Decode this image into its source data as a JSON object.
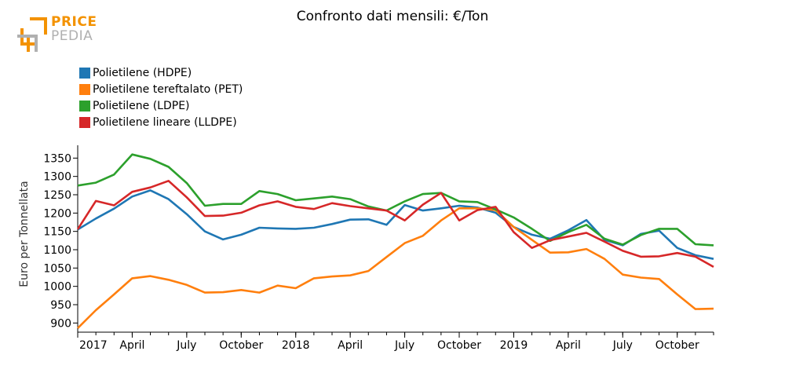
{
  "header": {
    "title": "Confronto dati mensili: €/Ton",
    "logo_word_1": "PRICE",
    "logo_word_2": "PEDIA",
    "logo_colors": {
      "accent": "#f39200",
      "gray": "#b0b0b0"
    }
  },
  "chart_data": {
    "type": "line",
    "title": "Confronto dati mensili: €/Ton",
    "ylabel": "Euro per Tonnellata",
    "xlabel": "",
    "x_range": [
      "2017-01",
      "2019-12"
    ],
    "ylim": [
      875,
      1385
    ],
    "yticks": [
      900,
      950,
      1000,
      1050,
      1100,
      1150,
      1200,
      1250,
      1300,
      1350
    ],
    "xticks": [
      {
        "x": "2017-01",
        "label": "2017"
      },
      {
        "x": "2017-04",
        "label": "April"
      },
      {
        "x": "2017-07",
        "label": "July"
      },
      {
        "x": "2017-10",
        "label": "October"
      },
      {
        "x": "2018-01",
        "label": "2018"
      },
      {
        "x": "2018-04",
        "label": "April"
      },
      {
        "x": "2018-07",
        "label": "July"
      },
      {
        "x": "2018-10",
        "label": "October"
      },
      {
        "x": "2019-01",
        "label": "2019"
      },
      {
        "x": "2019-04",
        "label": "April"
      },
      {
        "x": "2019-07",
        "label": "July"
      },
      {
        "x": "2019-10",
        "label": "October"
      }
    ],
    "grid": false,
    "legend_position": "top-left",
    "x": [
      "2017-01",
      "2017-02",
      "2017-03",
      "2017-04",
      "2017-05",
      "2017-06",
      "2017-07",
      "2017-08",
      "2017-09",
      "2017-10",
      "2017-11",
      "2017-12",
      "2018-01",
      "2018-02",
      "2018-03",
      "2018-04",
      "2018-05",
      "2018-06",
      "2018-07",
      "2018-08",
      "2018-09",
      "2018-10",
      "2018-11",
      "2018-12",
      "2019-01",
      "2019-02",
      "2019-03",
      "2019-04",
      "2019-05",
      "2019-06",
      "2019-07",
      "2019-08",
      "2019-09",
      "2019-10",
      "2019-11",
      "2019-12"
    ],
    "series": [
      {
        "name": "Polietilene (HDPE)",
        "color": "#1f77b4",
        "values": [
          1155,
          1185,
          1212,
          1245,
          1262,
          1238,
          1197,
          1150,
          1128,
          1141,
          1160,
          1158,
          1157,
          1160,
          1170,
          1182,
          1183,
          1168,
          1222,
          1207,
          1213,
          1220,
          1215,
          1201,
          1162,
          1141,
          1130,
          1153,
          1181,
          1127,
          1112,
          1143,
          1152,
          1105,
          1085,
          1075
        ]
      },
      {
        "name": "Polietilene tereftalato (PET)",
        "color": "#ff7f0e",
        "values": [
          886,
          935,
          978,
          1022,
          1028,
          1018,
          1004,
          983,
          984,
          990,
          983,
          1002,
          995,
          1022,
          1027,
          1030,
          1042,
          1080,
          1118,
          1138,
          1180,
          1213,
          1213,
          1208,
          1162,
          1127,
          1092,
          1093,
          1102,
          1075,
          1032,
          1024,
          1020,
          978,
          938,
          939
        ]
      },
      {
        "name": "Polietilene (LDPE)",
        "color": "#2ca02c",
        "values": [
          1275,
          1283,
          1305,
          1360,
          1348,
          1326,
          1282,
          1220,
          1225,
          1225,
          1260,
          1252,
          1235,
          1240,
          1245,
          1238,
          1218,
          1207,
          1232,
          1252,
          1255,
          1232,
          1230,
          1210,
          1188,
          1157,
          1124,
          1148,
          1168,
          1130,
          1114,
          1140,
          1157,
          1157,
          1115,
          1112
        ]
      },
      {
        "name": "Polietilene lineare (LLDPE)",
        "color": "#d62728",
        "values": [
          1156,
          1233,
          1221,
          1258,
          1270,
          1288,
          1243,
          1192,
          1193,
          1201,
          1221,
          1232,
          1217,
          1211,
          1227,
          1219,
          1213,
          1207,
          1180,
          1223,
          1255,
          1180,
          1208,
          1217,
          1148,
          1105,
          1126,
          1136,
          1146,
          1122,
          1097,
          1081,
          1082,
          1091,
          1081,
          1053
        ]
      }
    ]
  }
}
